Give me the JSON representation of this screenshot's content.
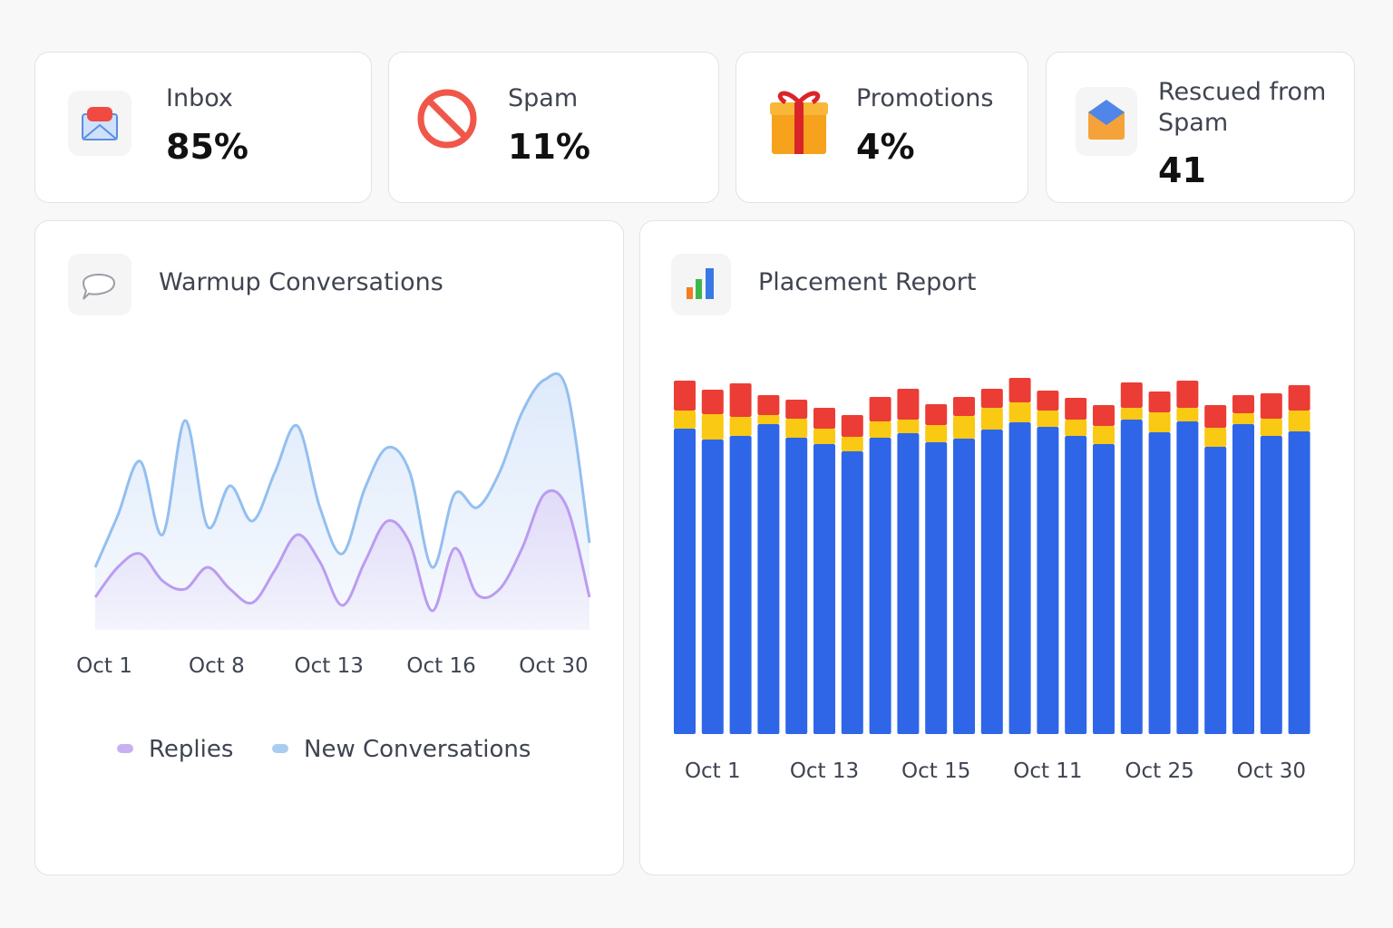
{
  "stats": [
    {
      "label": "Inbox",
      "value": "85%"
    },
    {
      "label": "Spam",
      "value": "11%"
    },
    {
      "label": "Promotions",
      "value": "4%"
    },
    {
      "label": "Rescued from Spam",
      "value": 41
    }
  ],
  "chart_data": [
    {
      "type": "line",
      "title": "Warmup Conversations",
      "categories": [
        "Oct 1",
        null,
        null,
        null,
        null,
        "Oct 8",
        null,
        null,
        null,
        null,
        "Oct 13",
        null,
        null,
        null,
        null,
        "Oct 16",
        null,
        null,
        null,
        null,
        "Oct 30",
        null,
        null
      ],
      "series": [
        {
          "name": "Replies",
          "color": "#bb9cf0",
          "values": [
            12,
            23,
            28,
            18,
            15,
            23,
            15,
            10,
            22,
            35,
            25,
            9,
            25,
            40,
            32,
            7,
            30,
            13,
            15,
            30,
            50,
            45,
            12
          ]
        },
        {
          "name": "New Conversations",
          "color": "#93bff0",
          "values": [
            23,
            42,
            62,
            35,
            77,
            38,
            53,
            40,
            58,
            75,
            45,
            28,
            52,
            67,
            58,
            23,
            50,
            45,
            58,
            80,
            92,
            88,
            32
          ]
        }
      ],
      "ylim": [
        0,
        100
      ]
    },
    {
      "type": "bar",
      "stacked": true,
      "title": "Placement Report",
      "categories": [
        null,
        "Oct 1",
        null,
        null,
        null,
        "Oct 13",
        null,
        null,
        null,
        "Oct 15",
        null,
        null,
        null,
        "Oct 11",
        null,
        null,
        null,
        "Oct 25",
        null,
        null,
        null,
        "Oct 30",
        null
      ],
      "series": [
        {
          "color": "#2f66e8",
          "values": [
            337,
            325,
            329,
            342,
            327,
            320,
            312,
            327,
            332,
            322,
            326,
            336,
            344,
            339,
            329,
            320,
            347,
            333,
            345,
            317,
            342,
            329,
            334
          ]
        },
        {
          "color": "#f9c913",
          "values": [
            20,
            28,
            21,
            10,
            21,
            17,
            16,
            18,
            15,
            19,
            25,
            24,
            22,
            18,
            18,
            20,
            13,
            22,
            15,
            21,
            12,
            19,
            23
          ]
        },
        {
          "color": "#eb3d35",
          "values": [
            33,
            27,
            37,
            22,
            21,
            23,
            24,
            27,
            34,
            23,
            21,
            21,
            27,
            22,
            24,
            23,
            28,
            23,
            30,
            25,
            20,
            28,
            28
          ]
        }
      ],
      "ylim": [
        0,
        400
      ]
    }
  ]
}
